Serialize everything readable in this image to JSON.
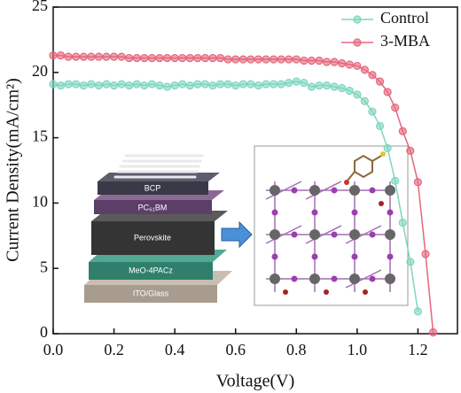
{
  "chart_data": {
    "type": "line",
    "xlabel": "Voltage(V)",
    "ylabel": "Current Density(mA/cm²)",
    "x": [
      0,
      0.025,
      0.05,
      0.075,
      0.1,
      0.125,
      0.15,
      0.175,
      0.2,
      0.225,
      0.25,
      0.275,
      0.3,
      0.325,
      0.35,
      0.375,
      0.4,
      0.425,
      0.45,
      0.475,
      0.5,
      0.525,
      0.55,
      0.575,
      0.6,
      0.625,
      0.65,
      0.675,
      0.7,
      0.725,
      0.75,
      0.775,
      0.8,
      0.825,
      0.85,
      0.875,
      0.9,
      0.925,
      0.95,
      0.975,
      1.0,
      1.025,
      1.05,
      1.075,
      1.1,
      1.125,
      1.15,
      1.175,
      1.2,
      1.225,
      1.25
    ],
    "series": [
      {
        "name": "Control",
        "color": "#7fd6bf",
        "values": [
          19.1,
          19.0,
          19.1,
          19.1,
          19.0,
          19.1,
          19.0,
          19.1,
          19.0,
          19.1,
          19.0,
          19.1,
          19.0,
          19.1,
          19.0,
          18.9,
          19.0,
          19.1,
          19.0,
          19.1,
          19.1,
          19.0,
          19.1,
          19.1,
          19.0,
          19.1,
          19.1,
          19.0,
          19.1,
          19.1,
          19.1,
          19.2,
          19.3,
          19.2,
          18.9,
          19.0,
          19.0,
          18.9,
          18.8,
          18.6,
          18.3,
          17.8,
          17.0,
          15.9,
          14.2,
          11.7,
          8.5,
          5.5,
          1.7,
          null,
          null
        ]
      },
      {
        "name": "3-MBA",
        "color": "#e5677c",
        "values": [
          21.3,
          21.3,
          21.2,
          21.2,
          21.2,
          21.2,
          21.2,
          21.2,
          21.2,
          21.2,
          21.1,
          21.1,
          21.1,
          21.1,
          21.1,
          21.1,
          21.1,
          21.1,
          21.1,
          21.1,
          21.1,
          21.1,
          21.1,
          21.0,
          21.0,
          21.0,
          21.0,
          21.0,
          21.0,
          21.0,
          21.0,
          21.0,
          21.0,
          20.9,
          20.9,
          20.9,
          20.8,
          20.8,
          20.7,
          20.6,
          20.5,
          20.2,
          19.8,
          19.3,
          18.5,
          17.3,
          15.5,
          14.0,
          11.6,
          6.1,
          0.1
        ]
      }
    ],
    "xlim": [
      0,
      1.33
    ],
    "ylim": [
      0,
      25
    ],
    "xticks": [
      {
        "value": 0,
        "label": "0.0"
      },
      0.2,
      0.4,
      0.6,
      0.8,
      {
        "value": 1,
        "label": "1.0"
      },
      1.2
    ],
    "yticks": [
      0,
      5,
      10,
      15,
      20,
      25
    ],
    "legend": "upper right",
    "inset_labels": [
      "BCP",
      "PC₆₁BM",
      "Perovskite",
      "MeO-4PACz",
      "ITO/Glass"
    ]
  }
}
